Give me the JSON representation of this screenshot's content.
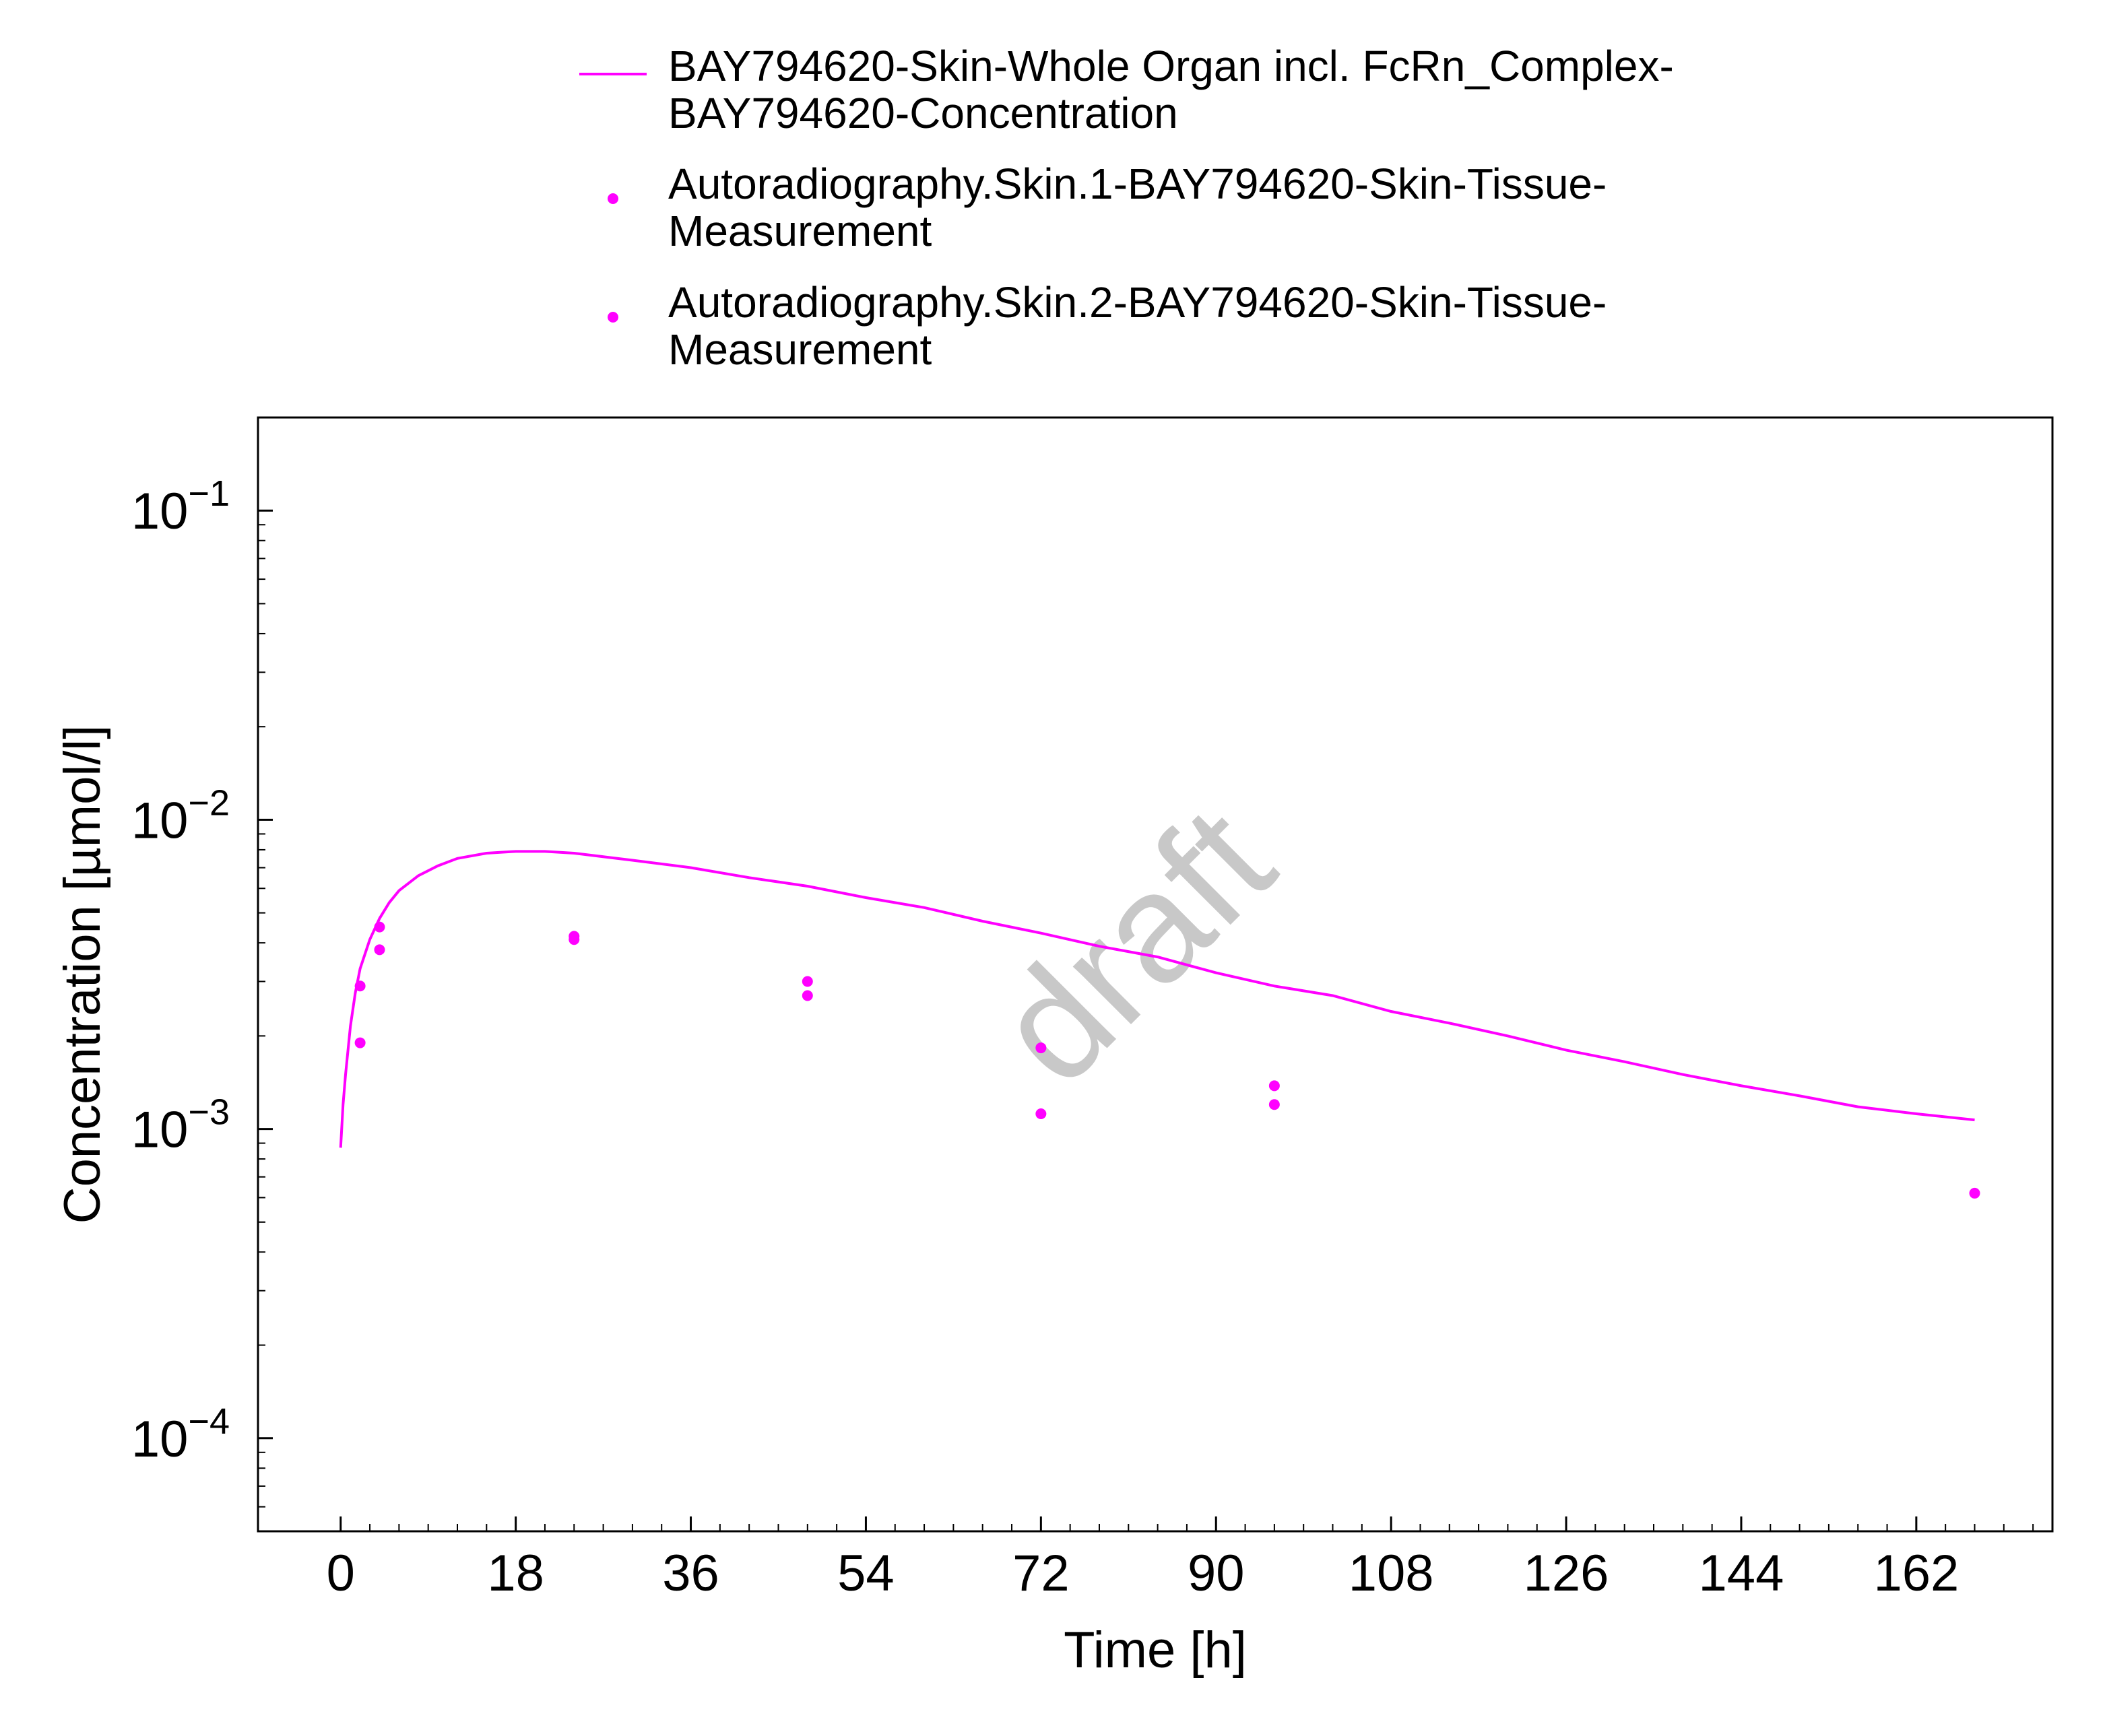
{
  "chart_data": {
    "type": "scatter",
    "title": "",
    "xlabel": "Time [h]",
    "ylabel": "Concentration [µmol/l]",
    "xlim": [
      -8.5,
      176
    ],
    "ylim": [
      5e-05,
      0.2
    ],
    "y_scale": "log",
    "x_ticks": [
      0,
      18,
      36,
      54,
      72,
      90,
      108,
      126,
      144,
      162
    ],
    "x_tick_labels": [
      "0",
      "18",
      "36",
      "54",
      "72",
      "90",
      "108",
      "126",
      "144",
      "162"
    ],
    "y_ticks": [
      {
        "value": 0.1,
        "base": "10",
        "exp": "−1"
      },
      {
        "value": 0.01,
        "base": "10",
        "exp": "−2"
      },
      {
        "value": 0.001,
        "base": "10",
        "exp": "−3"
      },
      {
        "value": 0.0001,
        "base": "10",
        "exp": "−4"
      }
    ],
    "grid": false,
    "legend_position": "top-center",
    "watermark": "draft",
    "series": [
      {
        "name": "BAY794620-Skin-Whole Organ incl. FcRn_Complex-BAY794620-Concentration",
        "legend_lines": [
          "BAY794620-Skin-Whole Organ incl. FcRn_Complex-",
          "BAY794620-Concentration"
        ],
        "kind": "line",
        "color": "#ff00ff",
        "x": [
          0,
          0.25,
          0.5,
          1,
          1.5,
          2,
          3,
          4,
          5,
          6,
          8,
          10,
          12,
          15,
          18,
          21,
          24,
          30,
          36,
          42,
          48,
          54,
          60,
          66,
          72,
          78,
          84,
          90,
          96,
          102,
          108,
          114,
          120,
          126,
          132,
          138,
          144,
          150,
          156,
          162,
          168
        ],
        "y": [
          0.00087,
          0.0012,
          0.0015,
          0.00215,
          0.00275,
          0.0033,
          0.0041,
          0.0048,
          0.0054,
          0.0059,
          0.0066,
          0.0071,
          0.0075,
          0.0078,
          0.0079,
          0.0079,
          0.0078,
          0.0074,
          0.007,
          0.0065,
          0.0061,
          0.0056,
          0.0052,
          0.0047,
          0.0043,
          0.0039,
          0.0036,
          0.0032,
          0.0029,
          0.0027,
          0.0024,
          0.0022,
          0.002,
          0.0018,
          0.00165,
          0.0015,
          0.00138,
          0.00128,
          0.00118,
          0.00112,
          0.00107
        ]
      },
      {
        "name": "Autoradiography.Skin.1-BAY794620-Skin-Tissue-Measurement",
        "legend_lines": [
          "Autoradiography.Skin.1-BAY794620-Skin-Tissue-",
          "Measurement"
        ],
        "kind": "scatter",
        "color": "#ff00ff",
        "x": [
          2,
          4,
          24,
          48,
          72,
          96,
          168
        ],
        "y": [
          0.0029,
          0.0045,
          0.0041,
          0.003,
          0.00183,
          0.00138,
          0.00062
        ]
      },
      {
        "name": "Autoradiography.Skin.2-BAY794620-Skin-Tissue-Measurement",
        "legend_lines": [
          "Autoradiography.Skin.2-BAY794620-Skin-Tissue-",
          "Measurement"
        ],
        "kind": "scatter",
        "color": "#ff00ff",
        "x": [
          2,
          4,
          24,
          48,
          72,
          96
        ],
        "y": [
          0.0019,
          0.0038,
          0.0042,
          0.0027,
          0.00112,
          0.0012
        ]
      }
    ]
  }
}
